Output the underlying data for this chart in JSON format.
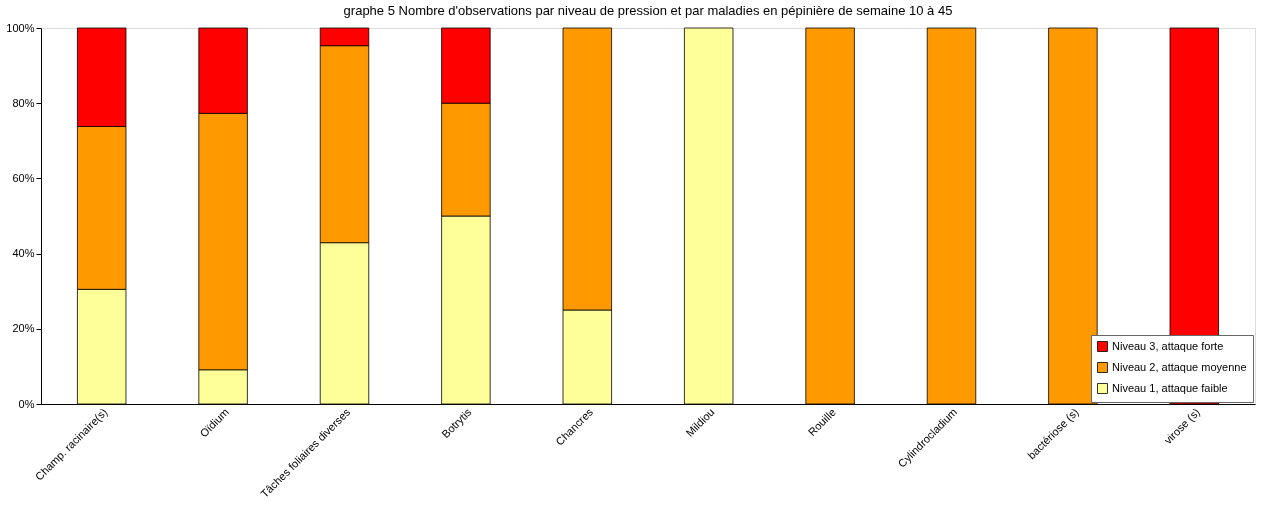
{
  "chart_data": {
    "type": "bar",
    "stacked": true,
    "title": "graphe 5 Nombre d'observations par niveau de pression et par maladies en pépinière de semaine 10 à 45",
    "categories": [
      "Champ. racinaire(s)",
      "Oïdium",
      "Tâches foliaires diverses",
      "Botrytis",
      "Chancres",
      "Mildiou",
      "Rouille",
      "Cylindrocladium",
      "bactériose (s)",
      "virose (s)"
    ],
    "series": [
      {
        "name": "Niveau 1, attaque faible",
        "color": "#ffff99",
        "values": [
          30.5,
          9.1,
          42.9,
          50,
          25,
          100,
          null,
          null,
          null,
          null
        ]
      },
      {
        "name": "Niveau 2, attaque moyenne",
        "color": "#ff9900",
        "values": [
          43.3,
          68.2,
          52.4,
          30,
          75,
          null,
          100,
          100,
          100,
          null
        ]
      },
      {
        "name": "Niveau 3, attaque forte",
        "color": "#ff0000",
        "values": [
          26.2,
          22.7,
          4.7,
          20,
          null,
          null,
          null,
          null,
          null,
          100
        ]
      }
    ],
    "ylim": [
      0,
      100
    ],
    "yticks": [
      {
        "value": 0,
        "label": "0%"
      },
      {
        "value": 20,
        "label": "20%"
      },
      {
        "value": 40,
        "label": "40%"
      },
      {
        "value": 60,
        "label": "60%"
      },
      {
        "value": 80,
        "label": "80%"
      },
      {
        "value": 100,
        "label": "100%"
      }
    ],
    "grid": false,
    "legend": "bottom right"
  }
}
